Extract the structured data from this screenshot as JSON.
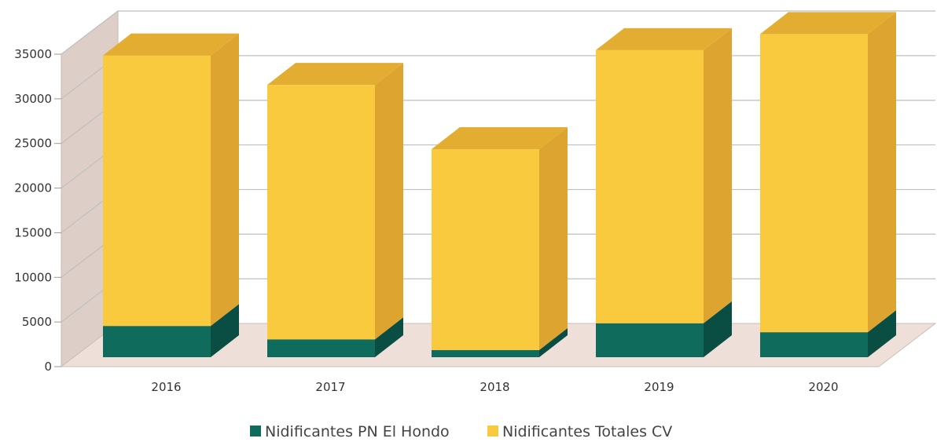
{
  "chart_data": {
    "type": "bar",
    "stacked": true,
    "three_d": true,
    "categories": [
      "2016",
      "2017",
      "2018",
      "2019",
      "2020"
    ],
    "series": [
      {
        "name": "Nidificantes PN El Hondo",
        "color": "#0f6b5c",
        "side_color": "#0a4d42",
        "top_color": "#0d5e51",
        "values": [
          3500,
          2000,
          800,
          3800,
          2800
        ]
      },
      {
        "name": "Nidificantes Totales CV",
        "color": "#f9c93e",
        "side_color": "#dda52f",
        "top_color": "#e3ad31",
        "values": [
          30300,
          28500,
          22500,
          30600,
          33400
        ]
      }
    ],
    "yticks": [
      0,
      5000,
      10000,
      15000,
      20000,
      25000,
      30000,
      35000
    ],
    "ylim": [
      0,
      35000
    ],
    "grid": true,
    "legend_position": "bottom",
    "wall_color": "#ddcfc8",
    "floor_color": "#eee0d9"
  }
}
